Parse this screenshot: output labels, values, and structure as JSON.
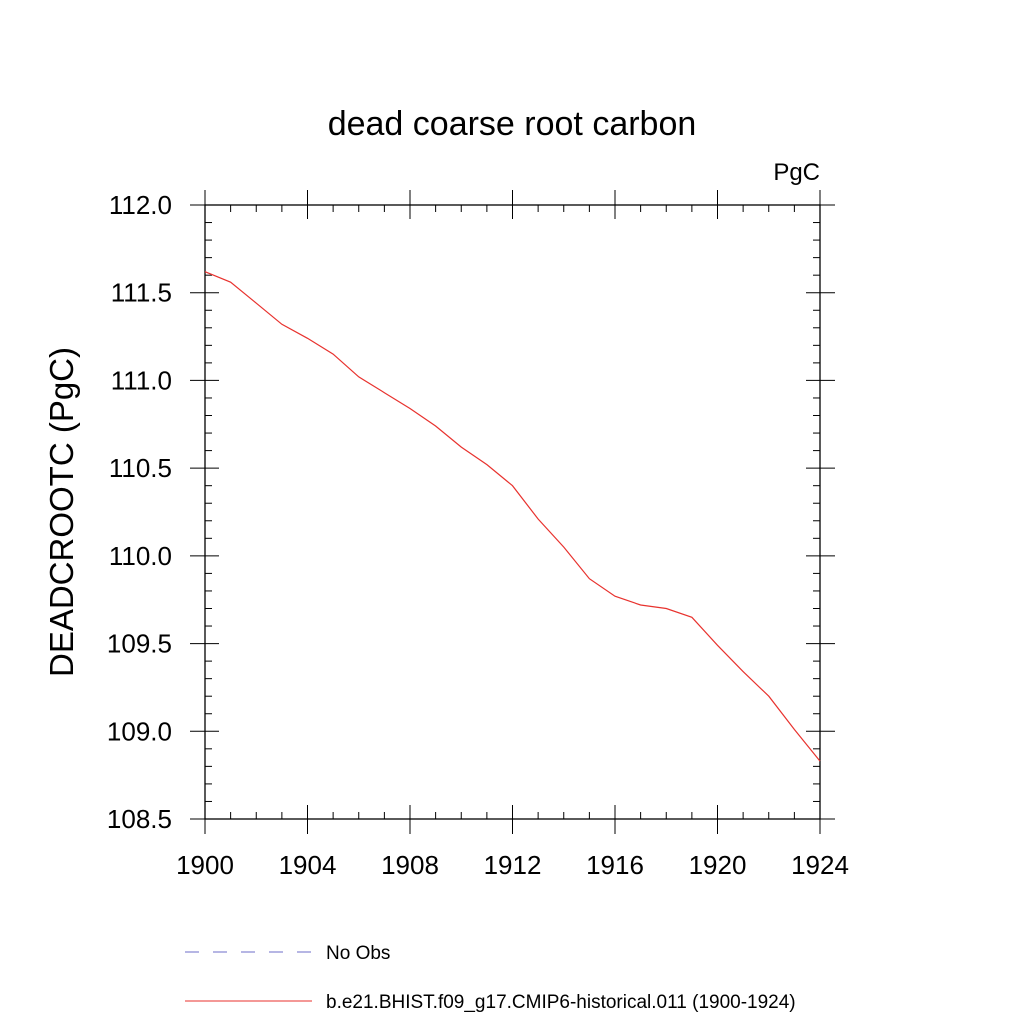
{
  "chart_data": {
    "type": "line",
    "title": "dead coarse root carbon",
    "units": "PgC",
    "ylabel": "DEADCROOTC  (PgC)",
    "xlabel": "",
    "xlim": [
      1900,
      1924
    ],
    "ylim": [
      108.5,
      112.0
    ],
    "x_ticks": [
      "1900",
      "1904",
      "1908",
      "1912",
      "1916",
      "1920",
      "1924"
    ],
    "y_ticks": [
      "108.5",
      "109.0",
      "109.5",
      "110.0",
      "110.5",
      "111.0",
      "111.5",
      "112.0"
    ],
    "grid": false,
    "legend_position": "bottom",
    "series": [
      {
        "name": "No Obs",
        "color": "#6e6ec8",
        "style": "dashed",
        "x": [],
        "values": []
      },
      {
        "name": "b.e21.BHIST.f09_g17.CMIP6-historical.011 (1900-1924)",
        "color": "#e8322e",
        "style": "solid",
        "x": [
          1900,
          1901,
          1902,
          1903,
          1904,
          1905,
          1906,
          1907,
          1908,
          1909,
          1910,
          1911,
          1912,
          1913,
          1914,
          1915,
          1916,
          1917,
          1918,
          1919,
          1920,
          1921,
          1922,
          1923,
          1924
        ],
        "values": [
          111.62,
          111.56,
          111.44,
          111.32,
          111.24,
          111.15,
          111.02,
          110.93,
          110.84,
          110.74,
          110.62,
          110.52,
          110.4,
          110.21,
          110.05,
          109.87,
          109.77,
          109.72,
          109.7,
          109.65,
          109.49,
          109.34,
          109.2,
          109.01,
          108.83
        ]
      }
    ]
  }
}
